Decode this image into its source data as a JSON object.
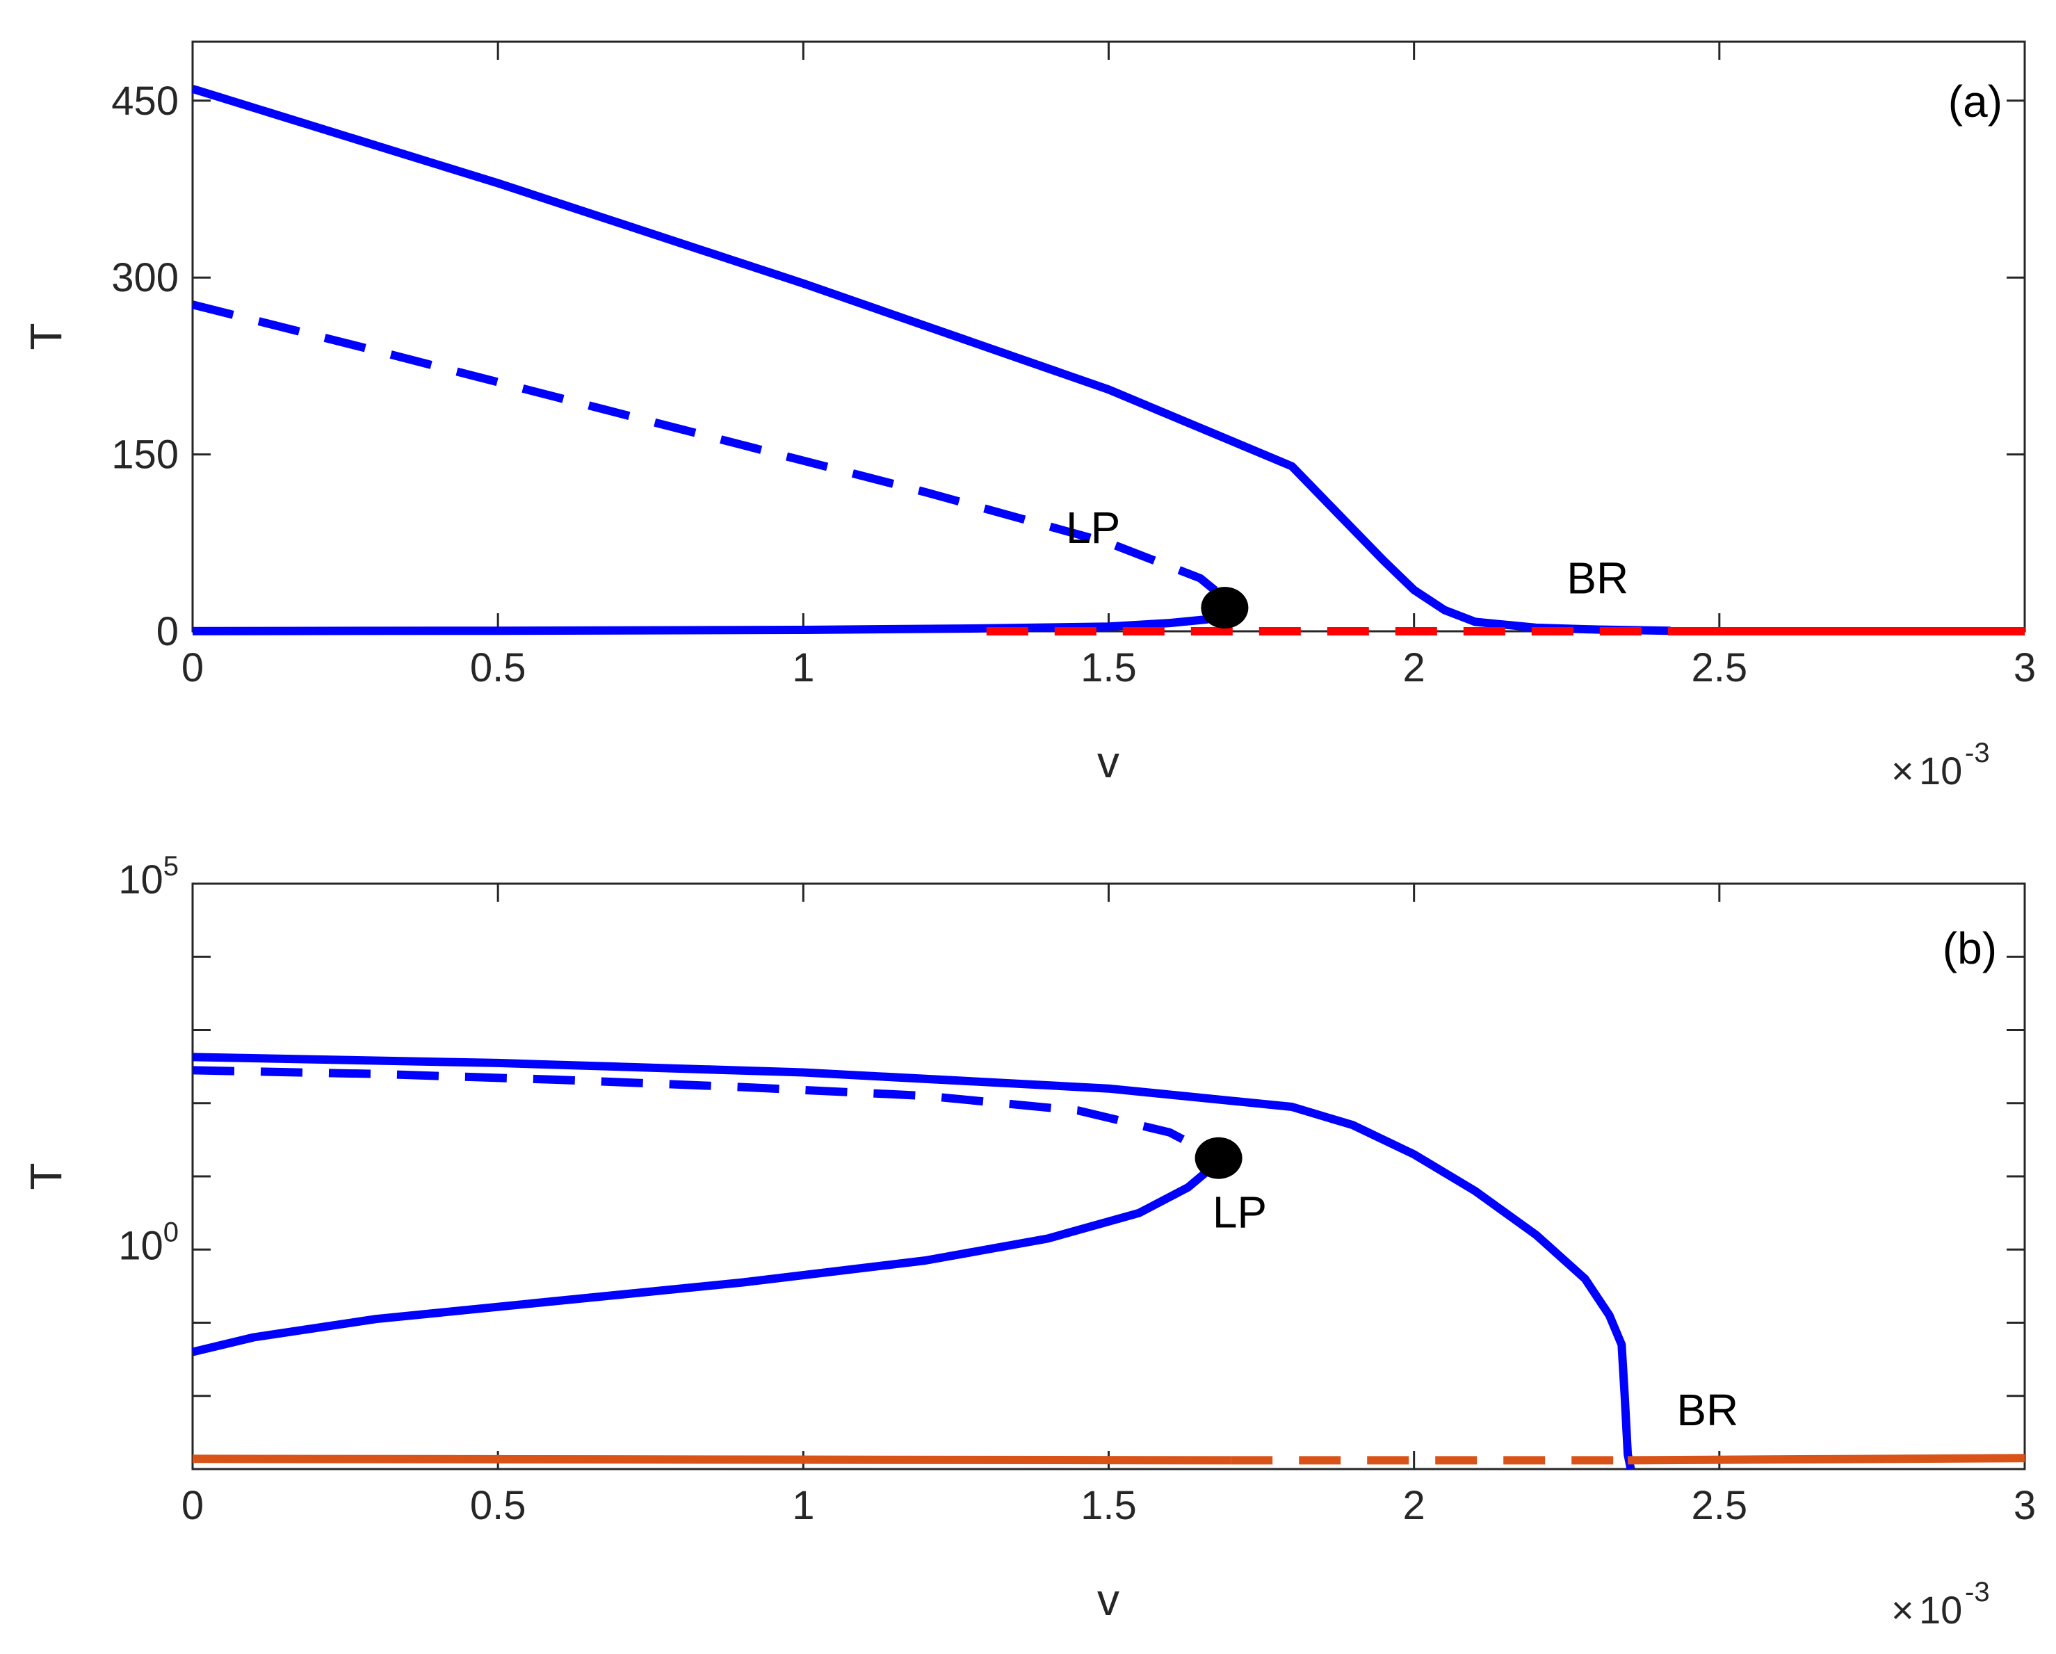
{
  "chart_data": [
    {
      "panel": "(a)",
      "type": "line",
      "xlabel": "v",
      "ylabel": "T",
      "x_exponent": "10",
      "x_exponent_power": "-3",
      "x_exponent_prefix": "×",
      "xlim": [
        0,
        3
      ],
      "ylim": [
        0,
        500
      ],
      "yscale": "linear",
      "xticks": [
        "0",
        "0.5",
        "1",
        "1.5",
        "2",
        "2.5",
        "3"
      ],
      "yticks": [
        "0",
        "150",
        "300",
        "450"
      ],
      "ytick_values": [
        0,
        150,
        300,
        450
      ],
      "colors": {
        "blue": "#0000ff",
        "red": "#ff0000",
        "marker": "#000000"
      },
      "series": [
        {
          "style": "solid",
          "color": "#0000ff",
          "x": [
            0,
            0.5,
            1.0,
            1.5,
            1.8,
            1.95,
            2.0,
            2.05,
            2.1,
            2.2,
            2.3,
            2.42
          ],
          "y": [
            460,
            380,
            295,
            205,
            140,
            60,
            35,
            18,
            8,
            3,
            1.5,
            0.5
          ]
        },
        {
          "style": "dashed",
          "color": "#0000ff",
          "x": [
            0,
            0.3,
            0.6,
            0.9,
            1.2,
            1.5,
            1.65,
            1.69
          ],
          "y": [
            277,
            238,
            198,
            158,
            118,
            75,
            45,
            28
          ]
        },
        {
          "style": "solid",
          "color": "#0000ff",
          "x": [
            0,
            0.5,
            1.0,
            1.3,
            1.5,
            1.6,
            1.66,
            1.69
          ],
          "y": [
            0.2,
            0.5,
            1.2,
            2.5,
            4,
            7,
            10,
            14
          ]
        },
        {
          "style": "dashed",
          "color": "#ff0000",
          "x": [
            1.3,
            2.42
          ],
          "y": [
            0,
            0
          ]
        },
        {
          "style": "solid",
          "color": "#ff0000",
          "x": [
            2.42,
            3.0
          ],
          "y": [
            0,
            0
          ]
        }
      ],
      "points": [
        {
          "label": "LP",
          "x": 1.69,
          "y": 20
        }
      ],
      "annotations": [
        {
          "text": "LP",
          "x": 1.43,
          "y": 75
        },
        {
          "text": "BR",
          "x": 2.25,
          "y": 32
        }
      ]
    },
    {
      "panel": "(b)",
      "type": "line",
      "xlabel": "v",
      "ylabel": "T",
      "x_exponent": "10",
      "x_exponent_power": "-3",
      "x_exponent_prefix": "×",
      "xlim": [
        0,
        3
      ],
      "ylim_log10": [
        -3,
        5
      ],
      "yscale": "log",
      "xticks": [
        "0",
        "0.5",
        "1",
        "1.5",
        "2",
        "2.5",
        "3"
      ],
      "yticks": [
        {
          "base": "10",
          "power": "0",
          "log10": 0
        },
        {
          "base": "10",
          "power": "5",
          "log10": 5
        }
      ],
      "ytick_minor_log10": [
        -3,
        -2,
        -1,
        1,
        2,
        3,
        4
      ],
      "colors": {
        "blue": "#0000ff",
        "orange": "#d95319",
        "marker": "#000000"
      },
      "series": [
        {
          "style": "solid",
          "color": "#0000ff",
          "x": [
            0,
            0.5,
            1.0,
            1.5,
            1.8,
            1.9,
            2.0,
            2.1,
            2.2,
            2.28,
            2.32,
            2.34,
            2.345,
            2.35,
            2.355
          ],
          "x_note": "",
          "log10y": [
            2.63,
            2.55,
            2.42,
            2.2,
            1.95,
            1.7,
            1.3,
            0.8,
            0.2,
            -0.4,
            -0.9,
            -1.3,
            -2.0,
            -2.8,
            -3.0
          ]
        },
        {
          "style": "dashed",
          "color": "#0000ff",
          "x": [
            0,
            0.3,
            0.6,
            0.9,
            1.2,
            1.45,
            1.6,
            1.68
          ],
          "log10y": [
            2.45,
            2.4,
            2.32,
            2.22,
            2.1,
            1.9,
            1.6,
            1.25
          ]
        },
        {
          "style": "solid",
          "color": "#0000ff",
          "x": [
            0,
            0.1,
            0.3,
            0.6,
            0.9,
            1.2,
            1.4,
            1.55,
            1.63,
            1.68
          ],
          "log10y": [
            -1.4,
            -1.2,
            -0.95,
            -0.7,
            -0.45,
            -0.15,
            0.15,
            0.5,
            0.85,
            1.2
          ]
        },
        {
          "style": "solid",
          "color": "#d95319",
          "x": [
            0,
            1.7
          ],
          "log10y": [
            -2.86,
            -2.88
          ]
        },
        {
          "style": "dashed",
          "color": "#d95319",
          "x": [
            1.7,
            2.35
          ],
          "log10y": [
            -2.88,
            -2.88
          ]
        },
        {
          "style": "solid",
          "color": "#d95319",
          "x": [
            2.35,
            3.0
          ],
          "log10y": [
            -2.88,
            -2.85
          ]
        }
      ],
      "points": [
        {
          "label": "LP",
          "x": 1.68,
          "log10y": 1.25
        }
      ],
      "annotations": [
        {
          "text": "LP",
          "x": 1.67,
          "log10y": 0.3
        },
        {
          "text": "BR",
          "x": 2.43,
          "log10y": -2.4
        }
      ]
    }
  ]
}
